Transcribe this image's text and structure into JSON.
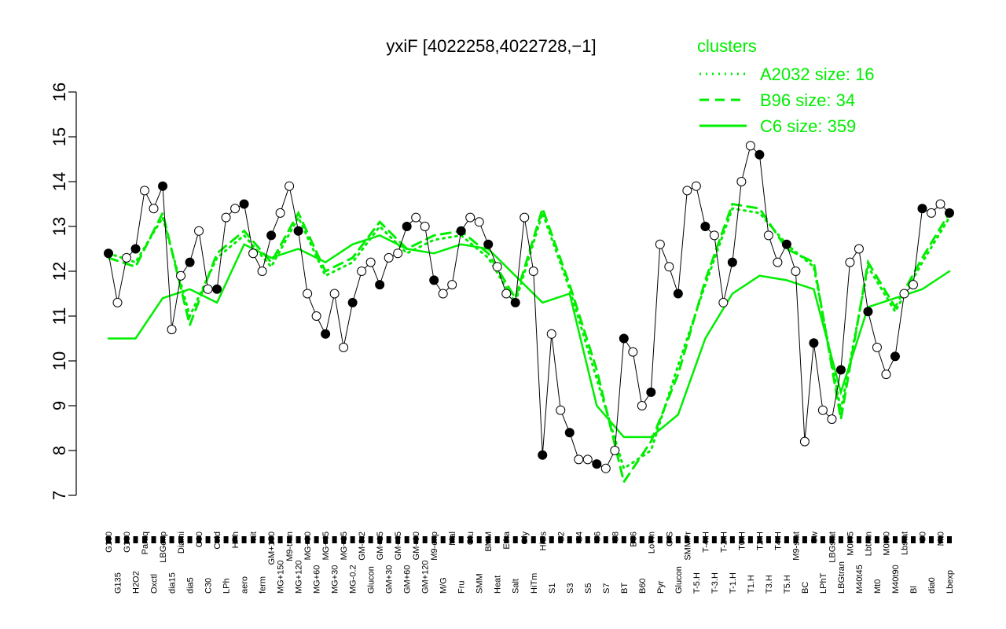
{
  "chart_data": {
    "type": "line",
    "title": "yxiF [4022258,4022728,−1]",
    "xlabel": "",
    "ylabel": "",
    "ylim": [
      7,
      16
    ],
    "yticks": [
      7,
      8,
      9,
      10,
      11,
      12,
      13,
      14,
      15,
      16
    ],
    "grid": false,
    "legend_position": "top-right",
    "legend": {
      "title": "clusters",
      "entries": [
        {
          "label": "A2032 size: 16",
          "style": "dotted"
        },
        {
          "label": "B96 size: 34",
          "style": "dashed"
        },
        {
          "label": "C6 size: 359",
          "style": "solid"
        }
      ]
    },
    "colors": {
      "clusters": "#00ee00",
      "points": "#000000",
      "axis": "#000000"
    },
    "x_tick_labels": [
      "G150",
      "G135",
      "G180",
      "H2O2",
      "Paraq",
      "Oxctl",
      "LBGexp",
      "dia15",
      "Diami",
      "dia5",
      "C90",
      "C30",
      "Cold",
      "LPh",
      "HPh",
      "aero",
      "nit",
      "ferm",
      "GM+150",
      "MG+150",
      "M9-tran",
      "MG+120",
      "MG+90",
      "MG+60",
      "MG+45",
      "MG+30",
      "MG+15",
      "MG-0.2",
      "GM-0.2",
      "Glucon",
      "GM+15",
      "GM+30",
      "GM+45",
      "GM+60",
      "GM+90",
      "GM+120",
      "M9-exp",
      "M/G",
      "Mal",
      "Fru",
      "Glu",
      "SMM",
      "BMM",
      "Heat",
      "Etha",
      "Salt",
      "Gly",
      "HiTm",
      "HiOs",
      "S1",
      "S2",
      "S3",
      "S4",
      "S5",
      "S6",
      "S7",
      "S8",
      "BT",
      "B36",
      "B60",
      "LoTm",
      "Pyr",
      "G/S",
      "Glucon",
      "SMMPr",
      "T-5.H",
      "T-4.H",
      "T-3.H",
      "T-2.H",
      "T-1.H",
      "T0.H",
      "T1.H",
      "T2.H",
      "T3.H",
      "T4.H",
      "T5.H",
      "M9-stat",
      "BC",
      "Sw",
      "LPhT",
      "LBGstat",
      "LBGtran",
      "M0t45",
      "M40t45",
      "Lbtran",
      "Mt0",
      "M0t90",
      "M40t90",
      "Lbstat",
      "Bl",
      "S0",
      "dia0",
      "Mt0",
      "Lbexp"
    ],
    "series": [
      {
        "name": "C6 size: 359",
        "style": "solid",
        "x": [
          0,
          3,
          6,
          9,
          12,
          15,
          18,
          21,
          24,
          27,
          30,
          33,
          36,
          39,
          42,
          45,
          48,
          51,
          54,
          57,
          60,
          63,
          66,
          69,
          72,
          75,
          78,
          81,
          84,
          87,
          90,
          93
        ],
        "values": [
          10.5,
          10.5,
          11.4,
          11.6,
          11.3,
          12.6,
          12.3,
          12.5,
          12.2,
          12.6,
          12.8,
          12.5,
          12.4,
          12.6,
          12.5,
          11.9,
          11.3,
          11.5,
          9.0,
          8.3,
          8.3,
          8.8,
          10.5,
          11.5,
          11.9,
          11.8,
          11.6,
          9.3,
          11.2,
          11.4,
          11.6,
          12.0
        ]
      },
      {
        "name": "B96 size: 34",
        "style": "dashed",
        "x": [
          0,
          3,
          6,
          9,
          12,
          15,
          18,
          21,
          24,
          27,
          30,
          33,
          36,
          39,
          42,
          45,
          48,
          51,
          54,
          57,
          60,
          63,
          66,
          69,
          72,
          75,
          78,
          81,
          84,
          87,
          90,
          93
        ],
        "values": [
          12.3,
          12.1,
          13.3,
          10.8,
          12.4,
          12.9,
          12.2,
          13.3,
          12.0,
          12.3,
          13.1,
          12.5,
          12.8,
          12.9,
          12.4,
          11.4,
          13.4,
          11.7,
          9.8,
          7.3,
          8.2,
          9.7,
          11.8,
          13.5,
          13.4,
          12.5,
          12.2,
          8.7,
          12.2,
          11.2,
          12.3,
          13.3
        ]
      },
      {
        "name": "A2032 size: 16",
        "style": "dotted",
        "x": [
          0,
          3,
          6,
          9,
          12,
          15,
          18,
          21,
          24,
          27,
          30,
          33,
          36,
          39,
          42,
          45,
          48,
          51,
          54,
          57,
          60,
          63,
          66,
          69,
          72,
          75,
          78,
          81,
          84,
          87,
          90,
          93
        ],
        "values": [
          12.4,
          12.2,
          13.2,
          11.0,
          12.3,
          12.8,
          12.1,
          13.2,
          11.9,
          12.2,
          13.0,
          12.4,
          12.7,
          12.8,
          12.3,
          11.3,
          13.3,
          11.6,
          9.6,
          7.6,
          8.0,
          9.9,
          11.7,
          13.4,
          13.3,
          12.6,
          12.1,
          8.9,
          12.1,
          11.1,
          12.2,
          13.2
        ]
      },
      {
        "name": "",
        "style": "points",
        "x": [
          0,
          1,
          2,
          3,
          4,
          5,
          6,
          7,
          8,
          9,
          10,
          11,
          12,
          13,
          14,
          15,
          16,
          17,
          18,
          19,
          20,
          21,
          22,
          23,
          24,
          25,
          26,
          27,
          28,
          29,
          30,
          31,
          32,
          33,
          34,
          35,
          36,
          37,
          38,
          39,
          40,
          41,
          42,
          43,
          44,
          45,
          46,
          47,
          48,
          49,
          50,
          51,
          52,
          53,
          54,
          55,
          56,
          57,
          58,
          59,
          60,
          61,
          62,
          63,
          64,
          65,
          66,
          67,
          68,
          69,
          70,
          71,
          72,
          73,
          74,
          75,
          76,
          77,
          78,
          79,
          80,
          81,
          82,
          83,
          84,
          85,
          86,
          87,
          88,
          89,
          90,
          91,
          92,
          93
        ],
        "values": [
          12.4,
          11.3,
          12.3,
          12.5,
          13.8,
          13.4,
          13.9,
          10.7,
          11.9,
          12.2,
          12.9,
          11.6,
          11.6,
          13.2,
          13.4,
          13.5,
          12.4,
          12.0,
          12.8,
          13.3,
          13.9,
          12.9,
          11.5,
          11.0,
          10.6,
          11.5,
          10.3,
          11.3,
          12.0,
          12.2,
          11.7,
          12.3,
          12.4,
          13.0,
          13.2,
          13.0,
          11.8,
          11.5,
          11.7,
          12.9,
          13.2,
          13.1,
          12.6,
          12.1,
          11.5,
          11.3,
          13.2,
          12.0,
          7.9,
          10.6,
          8.9,
          8.4,
          7.8,
          7.8,
          7.7,
          7.6,
          8.0,
          10.5,
          10.2,
          9.0,
          9.3,
          12.6,
          12.1,
          11.5,
          13.8,
          13.9,
          13.0,
          12.8,
          11.3,
          12.2,
          14.0,
          14.8,
          14.6,
          12.8,
          12.2,
          12.6,
          12.0,
          8.2,
          10.4,
          8.9,
          8.7,
          9.8,
          12.2,
          12.5,
          11.1,
          10.3,
          9.7,
          10.1,
          11.5,
          11.7,
          13.4,
          13.3,
          13.5,
          13.3
        ]
      }
    ]
  }
}
